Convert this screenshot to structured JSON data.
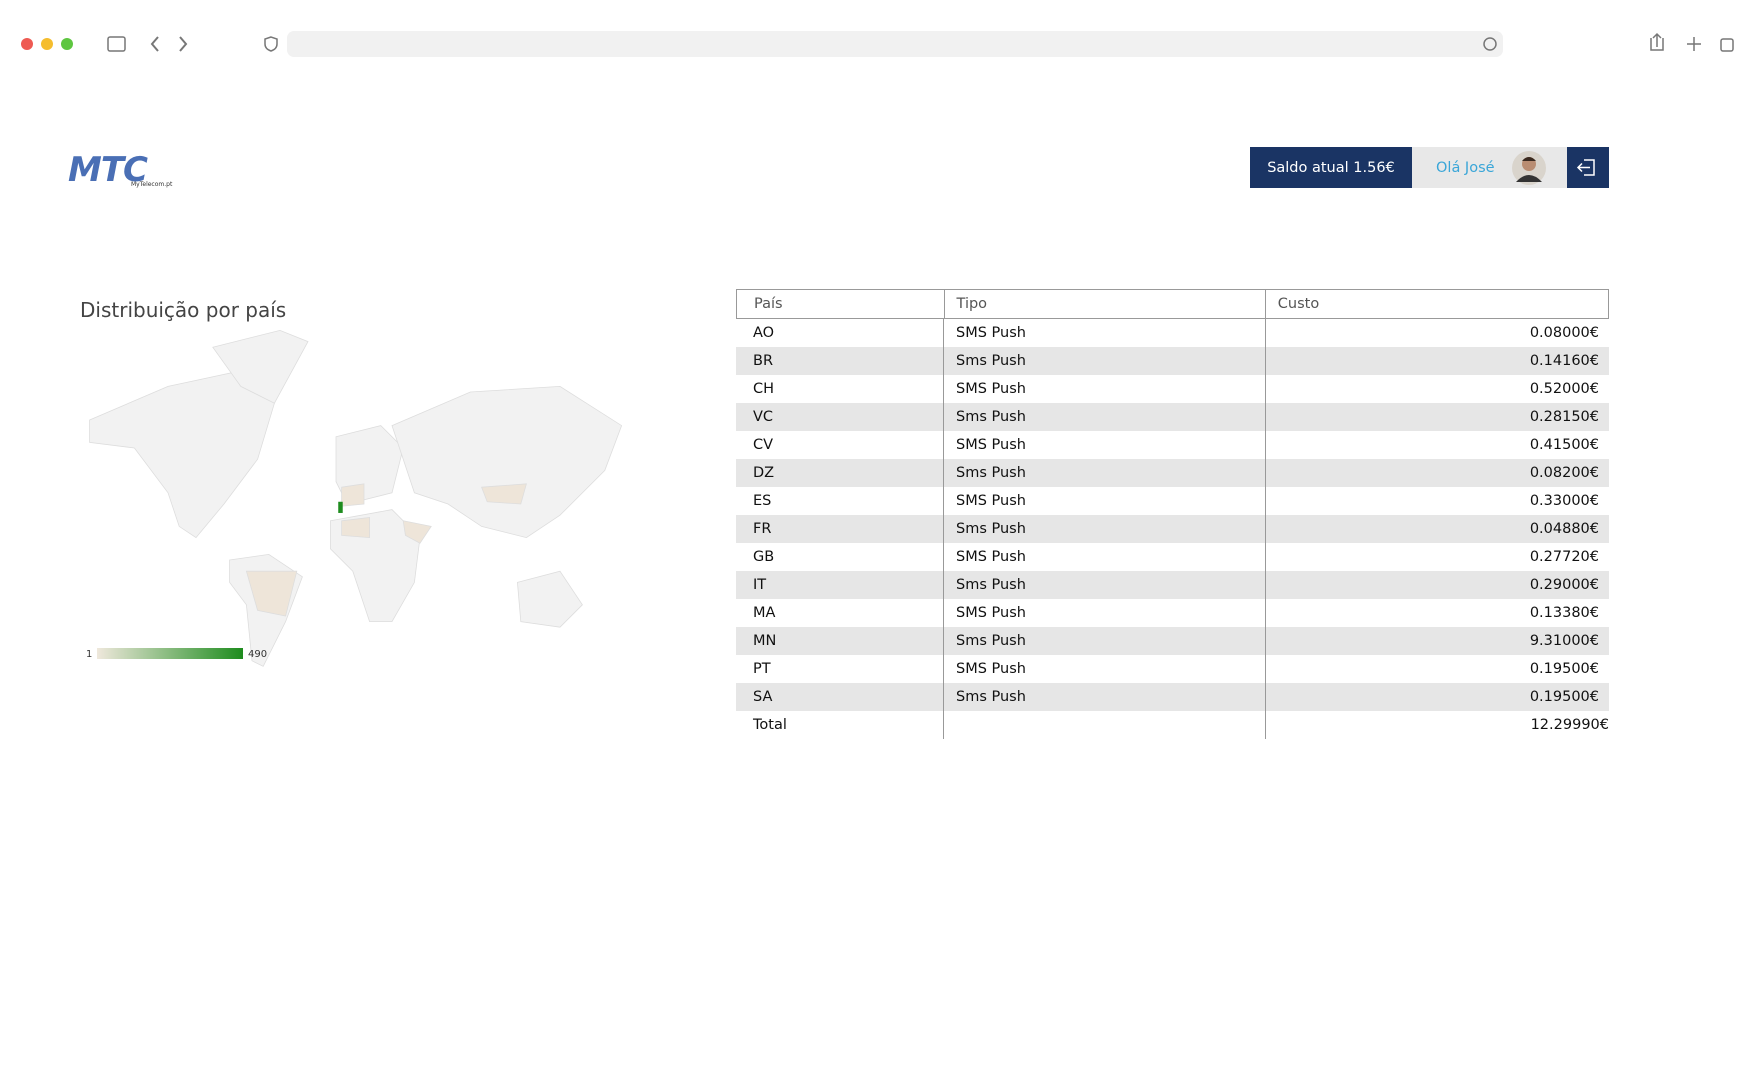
{
  "header": {
    "logo": "MTC",
    "logo_sub": "MyTelecom.pt",
    "balance": "Saldo atual 1.56€",
    "greeting": "Olá José"
  },
  "map": {
    "title": "Distribuição por país",
    "legend_min": "1",
    "legend_max": "490"
  },
  "table": {
    "columns": [
      "País",
      "Tipo",
      "Custo"
    ],
    "rows": [
      [
        "AO",
        "SMS Push",
        "0.08000€"
      ],
      [
        "BR",
        "Sms Push",
        "0.14160€"
      ],
      [
        "CH",
        "SMS Push",
        "0.52000€"
      ],
      [
        "VC",
        "Sms Push",
        "0.28150€"
      ],
      [
        "CV",
        "SMS Push",
        "0.41500€"
      ],
      [
        "DZ",
        "Sms Push",
        "0.08200€"
      ],
      [
        "ES",
        "SMS Push",
        "0.33000€"
      ],
      [
        "FR",
        "Sms Push",
        "0.04880€"
      ],
      [
        "GB",
        "SMS Push",
        "0.27720€"
      ],
      [
        "IT",
        "Sms Push",
        "0.29000€"
      ],
      [
        "MA",
        "SMS Push",
        "0.13380€"
      ],
      [
        "MN",
        "Sms Push",
        "9.31000€"
      ],
      [
        "PT",
        "SMS Push",
        "0.19500€"
      ],
      [
        "SA",
        "Sms Push",
        "0.19500€"
      ]
    ],
    "total": {
      "label": "Total",
      "cost": "12.29990€"
    }
  }
}
